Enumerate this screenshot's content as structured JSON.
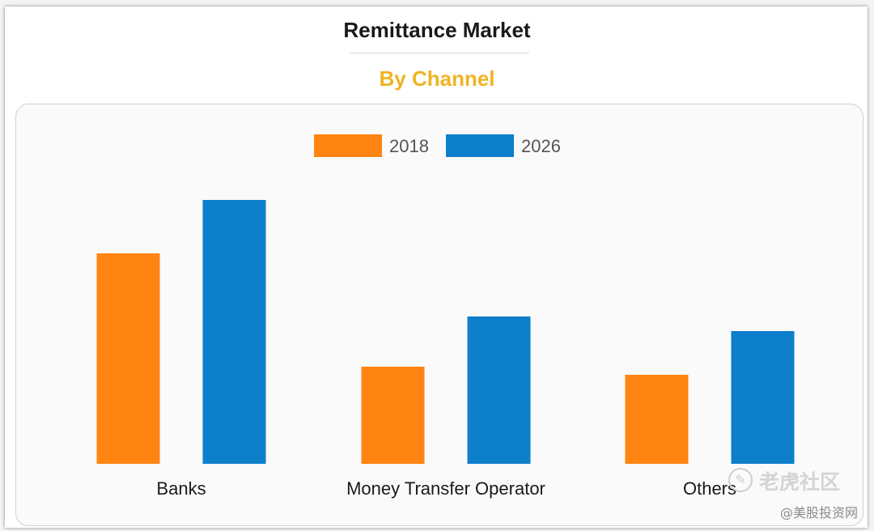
{
  "header": {
    "title": "Remittance Market",
    "subtitle": "By Channel"
  },
  "colors": {
    "title": "#1a1a1a",
    "subtitle": "#f0b323",
    "series_2018": "#ff8411",
    "series_2026": "#0e7fcb",
    "panel_background": "#fafafa"
  },
  "chart_data": {
    "type": "bar",
    "categories": [
      "Banks",
      "Money Transfer Operator",
      "Others"
    ],
    "series": [
      {
        "name": "2018",
        "values": [
          65,
          30,
          27.5
        ]
      },
      {
        "name": "2026",
        "values": [
          81.5,
          45.5,
          41
        ]
      }
    ],
    "title": "Remittance Market",
    "subtitle": "By Channel",
    "xlabel": "",
    "ylabel": "",
    "ylim": [
      0,
      100
    ],
    "y_axis_shown": false,
    "grid": false,
    "legend_position": "top-center"
  },
  "watermark": {
    "logo_icon": "tiger-logo-icon",
    "brand": "老虎社区",
    "handle": "@美股投资网"
  }
}
